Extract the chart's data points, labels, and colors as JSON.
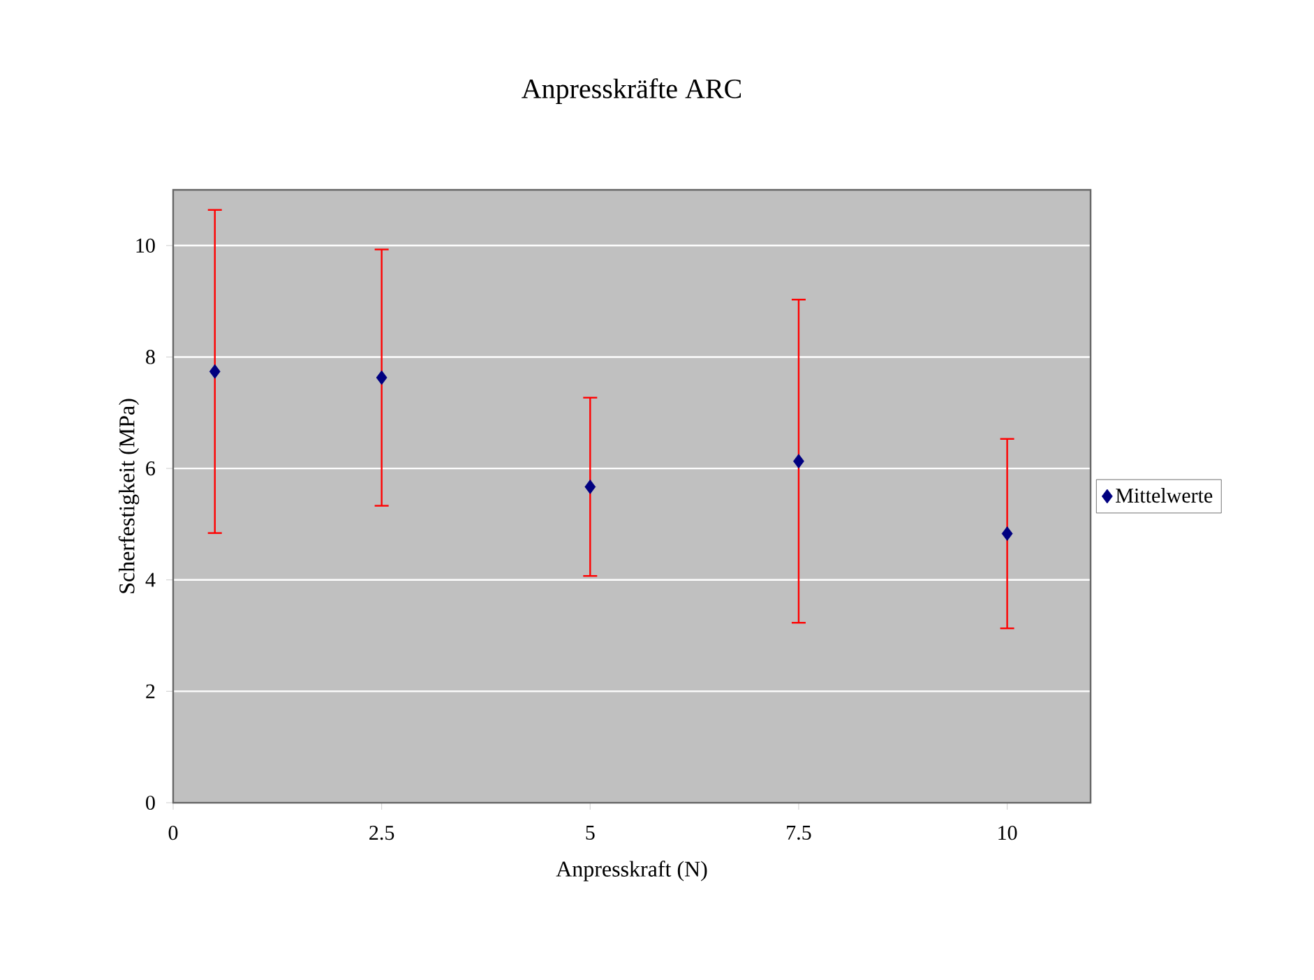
{
  "chart_data": {
    "type": "scatter",
    "title": "Anpresskräfte ARC",
    "xlabel": "Anpresskraft (N)",
    "ylabel": "Scherfestigkeit (MPa)",
    "x": [
      0.5,
      2.5,
      5,
      7.5,
      10
    ],
    "series": [
      {
        "name": "Mittelwerte",
        "color": "#000080",
        "values": [
          7.74,
          7.63,
          5.67,
          6.13,
          4.83
        ],
        "errors": [
          2.9,
          2.3,
          1.6,
          2.9,
          1.7
        ]
      }
    ],
    "xlim": [
      0,
      11
    ],
    "ylim": [
      0,
      11
    ],
    "xticks": [
      0,
      2.5,
      5,
      7.5,
      10
    ],
    "yticks": [
      0,
      2,
      4,
      6,
      8,
      10
    ],
    "grid": "y",
    "legend": "right",
    "marker": "diamond"
  }
}
